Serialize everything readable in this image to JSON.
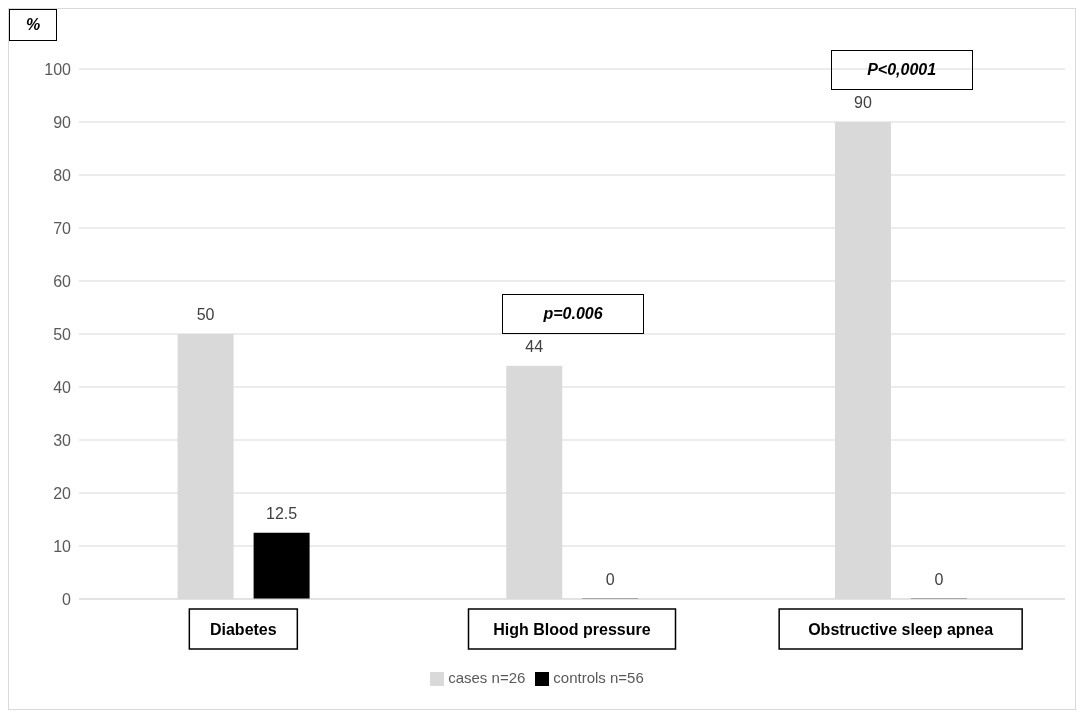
{
  "chart_data": {
    "type": "bar",
    "ylabel": "%",
    "categories": [
      "Diabetes",
      "High Blood pressure",
      "Obstructive sleep apnea"
    ],
    "series": [
      {
        "name": "cases n=26",
        "color": "#d9d9d9",
        "values": [
          50,
          44,
          90
        ]
      },
      {
        "name": "controls n=56",
        "color": "#000000",
        "values": [
          12.5,
          0,
          0
        ]
      }
    ],
    "ylim": [
      0,
      100
    ],
    "yticks": [
      0,
      10,
      20,
      30,
      40,
      50,
      60,
      70,
      80,
      90,
      100
    ],
    "grid": "y",
    "legend": "bottom",
    "data_labels": true,
    "annotations": [
      "p=0.006",
      "P<0,0001"
    ]
  }
}
